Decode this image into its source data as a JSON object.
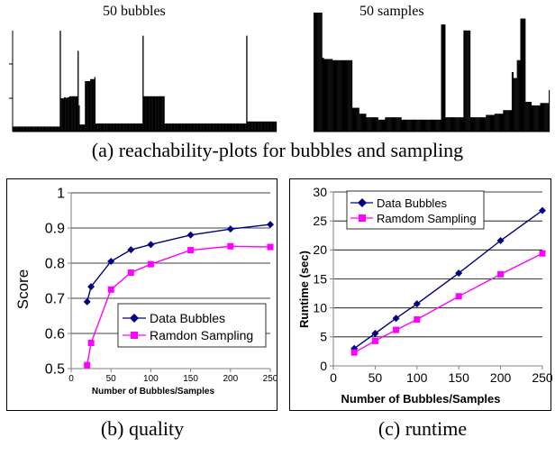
{
  "figure": {
    "caption_a": "(a) reachability-plots for bubbles and sampling",
    "caption_b": "(b) quality",
    "caption_c": "(c) runtime"
  },
  "chart_data": [
    {
      "type": "bar",
      "title": "50 bubbles",
      "xlabel": "",
      "ylabel": "",
      "ylim": [
        0,
        1
      ],
      "grid": false,
      "legend": "none",
      "values": [
        0.05,
        0.05,
        0.05,
        0.05,
        0.05,
        0.05,
        0.05,
        0.05,
        0.05,
        0.05,
        0.05,
        0.05,
        0.05,
        0.05,
        0.05,
        0.05,
        0.05,
        0.05,
        0.05,
        0.05,
        0.05,
        0.05,
        0.05,
        0.05,
        0.05,
        0.05,
        0.05,
        0.05,
        0.05,
        0.05,
        0.05,
        0.05,
        0.05,
        0.05,
        0.05,
        0.05,
        0.05,
        0.05,
        0.05,
        0.05,
        0.05,
        0.05,
        0.05,
        0.05,
        0.05,
        1.0,
        0.33,
        0.33,
        0.33,
        0.34,
        0.34,
        0.33,
        0.34,
        0.34,
        0.35,
        0.35,
        0.35,
        0.35,
        0.35,
        0.35,
        0.35,
        0.35,
        0.8,
        0.26,
        0.07,
        0.07,
        0.07,
        0.07,
        0.07,
        0.5,
        0.5,
        0.5,
        0.5,
        0.5,
        0.52,
        0.52,
        0.52,
        0.52,
        0.54,
        0.08,
        0.08,
        0.08,
        0.08,
        0.08,
        0.08,
        0.08,
        0.08,
        0.08,
        0.08,
        0.08,
        0.08,
        0.08,
        0.08,
        0.08,
        0.08,
        0.08,
        0.08,
        0.08,
        0.08,
        0.08,
        0.08,
        0.08,
        0.08,
        0.08,
        0.08,
        0.08,
        0.08,
        0.08,
        0.08,
        0.08,
        0.08,
        0.08,
        0.08,
        0.08,
        0.08,
        0.08,
        0.08,
        0.08,
        0.08,
        0.08,
        0.08,
        0.08,
        0.08,
        0.08,
        0.95,
        0.35,
        0.35,
        0.35,
        0.35,
        0.35,
        0.35,
        0.35,
        0.35,
        0.35,
        0.35,
        0.35,
        0.35,
        0.35,
        0.35,
        0.35,
        0.35,
        0.35,
        0.35,
        0.35,
        0.35,
        0.08,
        0.08,
        0.08,
        0.08,
        0.08,
        0.08,
        0.08,
        0.08,
        0.08,
        0.08,
        0.08,
        0.08,
        0.08,
        0.08,
        0.08,
        0.08,
        0.08,
        0.08,
        0.08,
        0.08,
        0.08,
        0.08,
        0.08,
        0.08,
        0.08,
        0.08,
        0.08,
        0.08,
        0.08,
        0.08,
        0.08,
        0.08,
        0.08,
        0.08,
        0.08,
        0.08,
        0.08,
        0.08,
        0.08,
        0.08,
        0.08,
        0.08,
        0.08,
        0.08,
        0.08,
        0.08,
        0.08,
        0.08,
        0.08,
        0.08,
        0.08,
        0.08,
        0.08,
        0.08,
        0.08,
        0.08,
        0.08,
        0.08,
        0.08,
        0.08,
        0.08,
        0.08,
        0.08,
        0.08,
        0.08,
        0.08,
        0.08,
        0.08,
        0.08,
        0.08,
        0.08,
        0.08,
        0.08,
        0.08,
        0.08,
        0.08,
        0.08,
        0.08,
        0.95,
        0.1,
        0.1,
        0.1,
        0.1,
        0.1,
        0.1,
        0.1,
        0.1,
        0.1,
        0.1,
        0.1,
        0.1,
        0.1,
        0.1,
        0.1,
        0.1,
        0.1,
        0.1,
        0.1,
        0.1,
        0.1,
        0.1,
        0.1,
        0.1,
        0.1,
        0.1,
        0.1,
        0.1
      ]
    },
    {
      "type": "bar",
      "title": "50 samples",
      "xlabel": "",
      "ylabel": "",
      "ylim": [
        0,
        1
      ],
      "grid": false,
      "legend": "none",
      "values": [
        1.0,
        1.0,
        1.0,
        1.0,
        1.0,
        1.0,
        1.0,
        1.0,
        1.0,
        1.0,
        0.62,
        0.62,
        0.61,
        0.61,
        0.61,
        0.61,
        0.61,
        0.61,
        0.61,
        0.61,
        0.61,
        0.61,
        0.6,
        0.6,
        0.6,
        0.6,
        0.6,
        0.6,
        0.6,
        0.6,
        0.6,
        0.6,
        0.6,
        0.6,
        0.6,
        0.6,
        0.6,
        0.6,
        0.6,
        0.6,
        0.6,
        0.6,
        0.6,
        0.6,
        0.6,
        0.2,
        0.2,
        0.2,
        0.2,
        0.2,
        0.2,
        0.2,
        0.2,
        0.15,
        0.15,
        0.15,
        0.15,
        0.15,
        0.15,
        0.15,
        0.15,
        0.12,
        0.12,
        0.12,
        0.12,
        0.12,
        0.12,
        0.12,
        0.12,
        0.12,
        0.12,
        0.12,
        0.12,
        0.12,
        0.12,
        0.1,
        0.1,
        0.1,
        0.1,
        0.1,
        0.1,
        0.1,
        0.1,
        0.12,
        0.12,
        0.12,
        0.12,
        0.12,
        0.12,
        0.12,
        0.12,
        0.12,
        0.12,
        0.12,
        0.12,
        0.12,
        0.12,
        0.12,
        0.12,
        0.12,
        0.12,
        0.12,
        0.1,
        0.1,
        0.1,
        0.1,
        0.1,
        0.1,
        0.1,
        0.1,
        0.1,
        0.1,
        0.1,
        0.1,
        0.1,
        0.1,
        0.1,
        0.1,
        0.1,
        0.1,
        0.1,
        0.1,
        0.1,
        0.1,
        0.1,
        0.1,
        0.1,
        0.1,
        0.1,
        0.1,
        0.1,
        0.1,
        0.1,
        0.1,
        0.1,
        0.1,
        0.1,
        0.1,
        0.1,
        0.1,
        0.1,
        0.1,
        0.1,
        0.1,
        0.1,
        0.1,
        0.1,
        0.1,
        0.9,
        0.9,
        0.9,
        0.9,
        0.9,
        0.12,
        0.12,
        0.12,
        0.12,
        0.12,
        0.12,
        0.12,
        0.12,
        0.12,
        0.12,
        0.12,
        0.12,
        0.12,
        0.12,
        0.12,
        0.12,
        0.12,
        0.12,
        0.12,
        0.12,
        0.12,
        0.85,
        0.85,
        0.85,
        0.85,
        0.85,
        0.85,
        0.85,
        0.85,
        0.12,
        0.12,
        0.12,
        0.12,
        0.12,
        0.12,
        0.12,
        0.12,
        0.12,
        0.12,
        0.12,
        0.12,
        0.12,
        0.12,
        0.12,
        0.12,
        0.12,
        0.12,
        0.14,
        0.14,
        0.14,
        0.14,
        0.14,
        0.14,
        0.14,
        0.14,
        0.14,
        0.14,
        0.15,
        0.15,
        0.15,
        0.15,
        0.15,
        0.15,
        0.15,
        0.15,
        0.15,
        0.15,
        0.18,
        0.18,
        0.18,
        0.18,
        0.18,
        0.18,
        0.18,
        0.18,
        0.18,
        0.18,
        0.5,
        0.5,
        0.45,
        0.45,
        0.45,
        0.45,
        0.6,
        0.6,
        0.6,
        0.6,
        0.95,
        0.95,
        0.95,
        0.95,
        0.95,
        0.95,
        0.25,
        0.25,
        0.25,
        0.25,
        0.25,
        0.25,
        0.25,
        0.22,
        0.22,
        0.22,
        0.22,
        0.22,
        0.22,
        0.22,
        0.22,
        0.22,
        0.22,
        0.24,
        0.24,
        0.24,
        0.24,
        0.24,
        0.24,
        0.24,
        0.24,
        0.24,
        0.24,
        0.35
      ]
    },
    {
      "type": "line",
      "title": "",
      "xlabel": "Number of Bubbles/Samples",
      "ylabel": "Score",
      "xlim": [
        0,
        250
      ],
      "ylim": [
        0.5,
        1
      ],
      "xticks": [
        0,
        50,
        100,
        150,
        200,
        250
      ],
      "yticks": [
        0.5,
        0.6,
        0.7,
        0.8,
        0.9,
        1
      ],
      "grid": true,
      "legend": "bottom-right",
      "series": [
        {
          "name": "Data Bubbles",
          "color": "#000080",
          "marker": "diamond",
          "x": [
            20,
            25,
            50,
            75,
            100,
            150,
            200,
            250
          ],
          "values": [
            0.69,
            0.733,
            0.805,
            0.838,
            0.853,
            0.88,
            0.897,
            0.91
          ]
        },
        {
          "name": "Ramdon Sampling",
          "color": "#ff00ff",
          "marker": "square",
          "x": [
            20,
            25,
            50,
            75,
            100,
            150,
            200,
            250
          ],
          "values": [
            0.51,
            0.573,
            0.725,
            0.773,
            0.797,
            0.837,
            0.848,
            0.846
          ]
        }
      ]
    },
    {
      "type": "line",
      "title": "",
      "xlabel": "Number of Bubbles/Samples",
      "ylabel": "Runtime (sec)",
      "xlim": [
        0,
        250
      ],
      "ylim": [
        0,
        30
      ],
      "xticks": [
        0,
        50,
        100,
        150,
        200,
        250
      ],
      "yticks": [
        0,
        5,
        10,
        15,
        20,
        25,
        30
      ],
      "grid": true,
      "legend": "top-left",
      "series": [
        {
          "name": "Data Bubbles",
          "color": "#000080",
          "marker": "diamond",
          "x": [
            25,
            50,
            75,
            100,
            150,
            200,
            250
          ],
          "values": [
            3.0,
            5.6,
            8.2,
            10.7,
            16.0,
            21.6,
            26.8
          ]
        },
        {
          "name": "Ramdom Sampling",
          "color": "#ff00ff",
          "marker": "square",
          "x": [
            25,
            50,
            75,
            100,
            150,
            200,
            250
          ],
          "values": [
            2.3,
            4.3,
            6.2,
            8.0,
            12.0,
            15.8,
            19.4
          ]
        }
      ]
    }
  ]
}
